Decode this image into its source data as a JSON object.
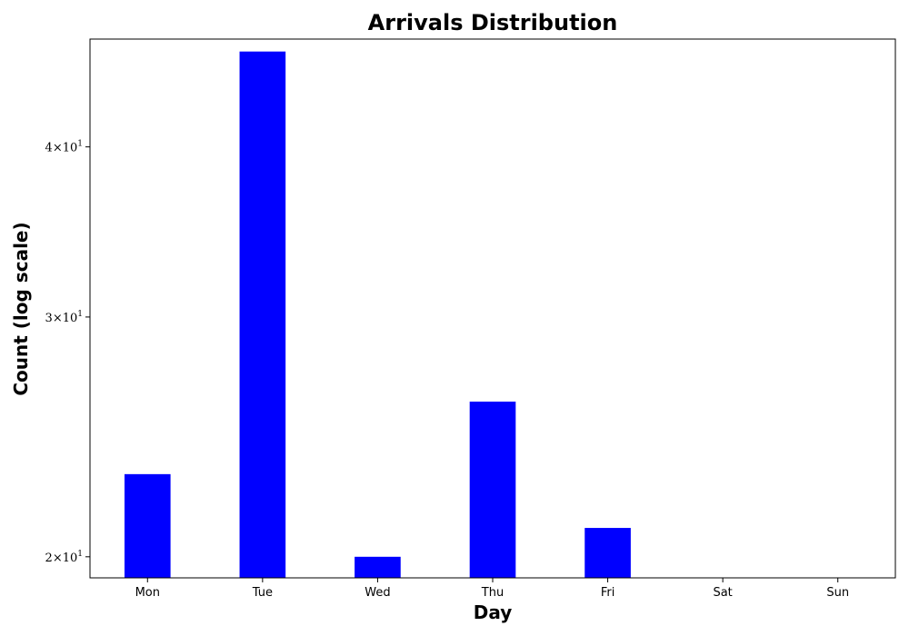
{
  "chart_data": {
    "type": "bar",
    "title": "Arrivals Distribution",
    "xlabel": "Day",
    "ylabel": "Count (log scale)",
    "yscale": "log",
    "ylim": [
      19.3,
      48
    ],
    "categories": [
      "Mon",
      "Tue",
      "Wed",
      "Thu",
      "Fri",
      "Sat",
      "Sun"
    ],
    "values": [
      23,
      47,
      20,
      26,
      21,
      null,
      null
    ],
    "yticks": [
      {
        "value": 20,
        "mantissa": "2",
        "base": "10",
        "exp": "1"
      },
      {
        "value": 30,
        "mantissa": "3",
        "base": "10",
        "exp": "1"
      },
      {
        "value": 40,
        "mantissa": "4",
        "base": "10",
        "exp": "1"
      }
    ],
    "bar_color": "#0000ff",
    "grid": false,
    "legend": "none"
  }
}
